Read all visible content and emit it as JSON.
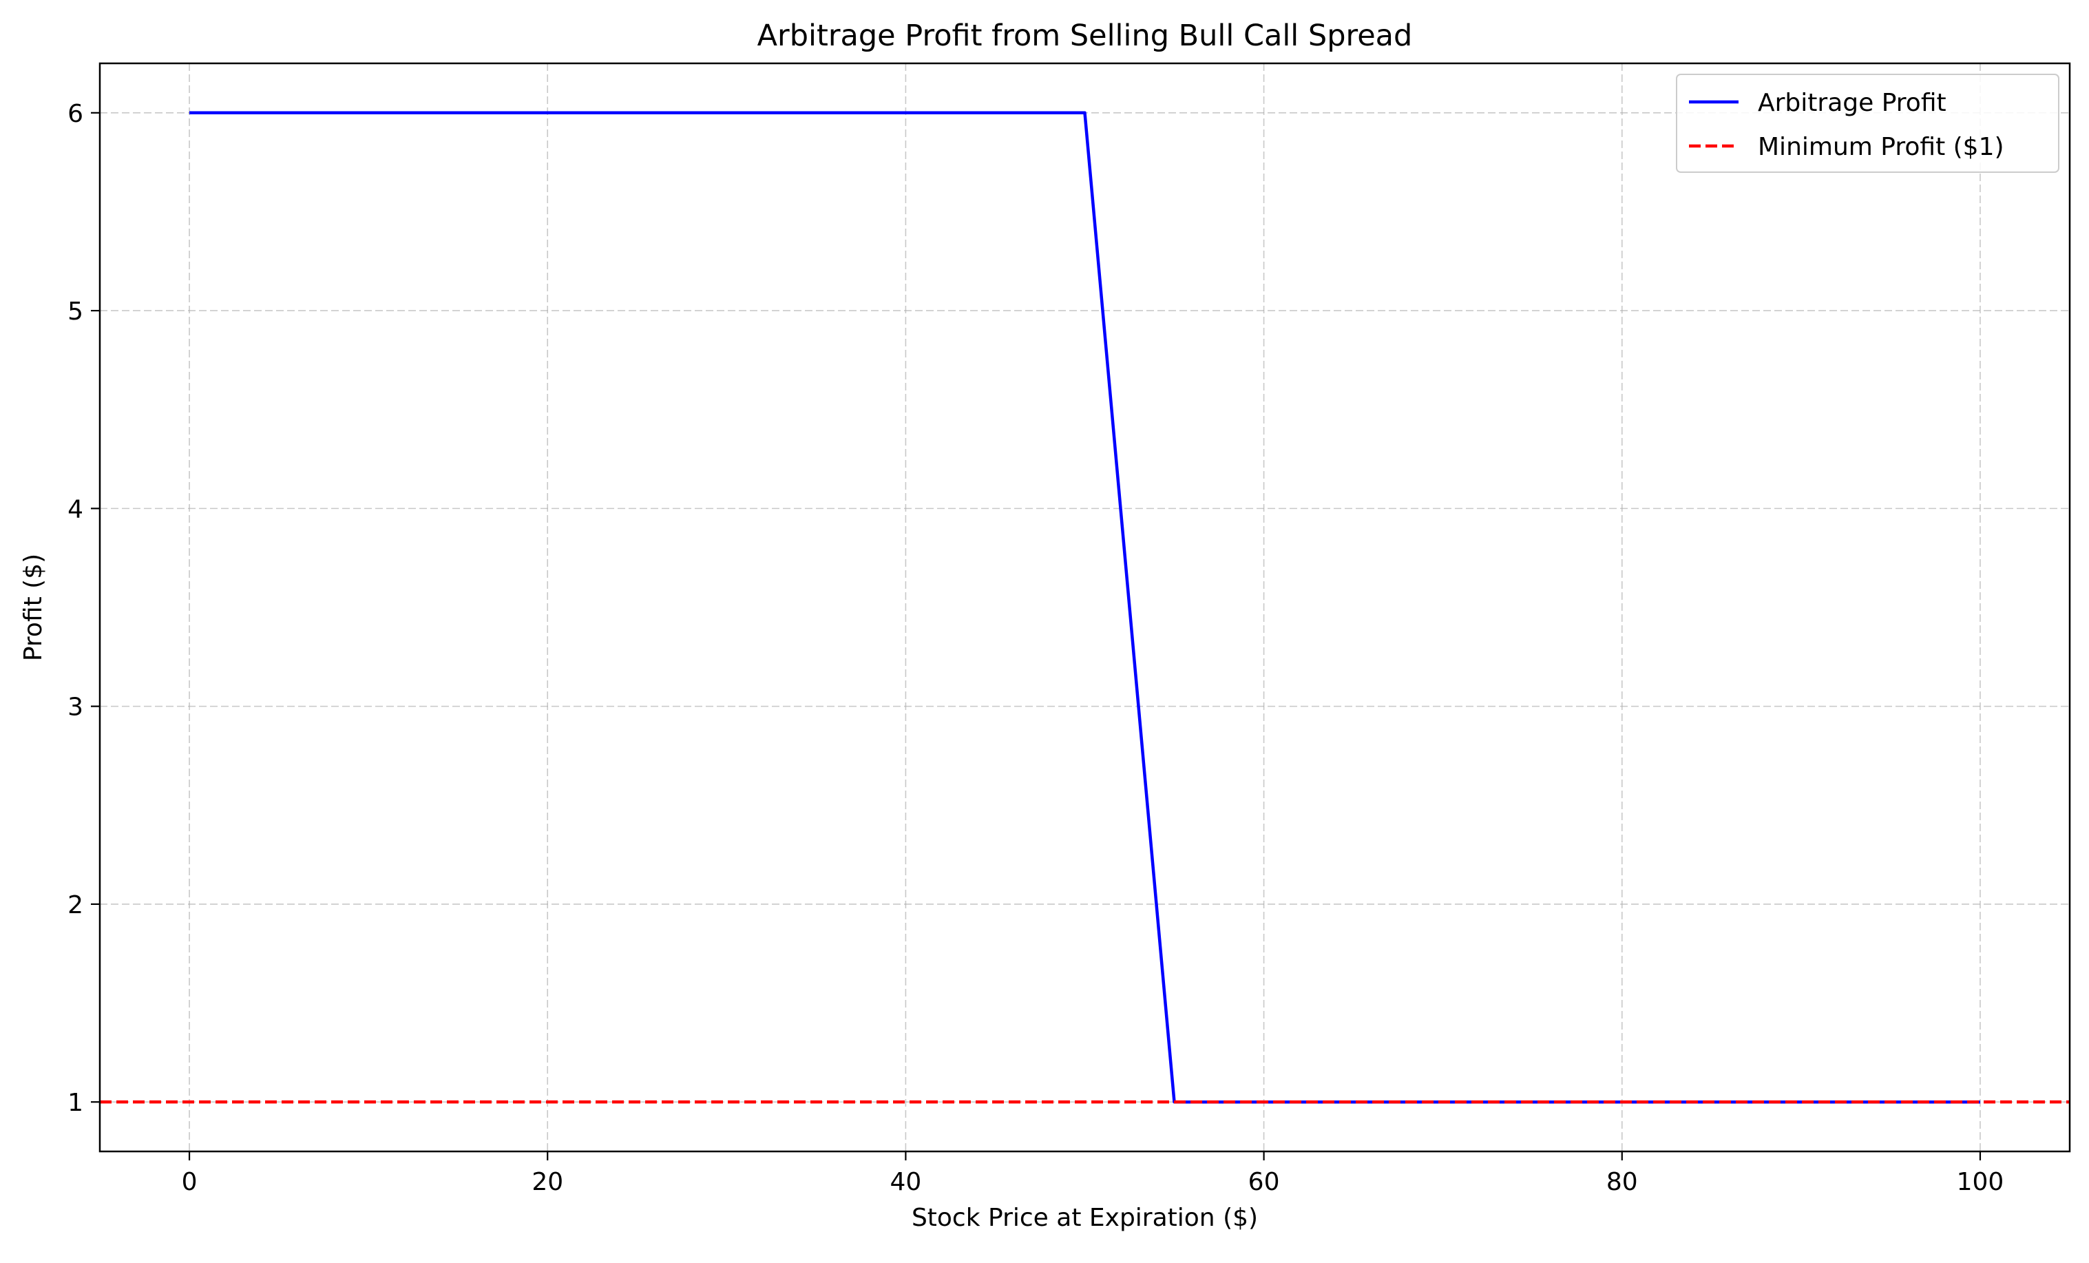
{
  "chart_data": {
    "type": "line",
    "title": "Arbitrage Profit from Selling Bull Call Spread",
    "xlabel": "Stock Price at Expiration ($)",
    "ylabel": "Profit ($)",
    "xlim": [
      -5,
      105
    ],
    "ylim": [
      0.75,
      6.25
    ],
    "xticks": [
      0,
      20,
      40,
      60,
      80,
      100
    ],
    "yticks": [
      1,
      2,
      3,
      4,
      5,
      6
    ],
    "xtick_labels": [
      "0",
      "20",
      "40",
      "60",
      "80",
      "100"
    ],
    "ytick_labels": [
      "1",
      "2",
      "3",
      "4",
      "5",
      "6"
    ],
    "grid": true,
    "legend_position": "top-right",
    "series": [
      {
        "name": "Arbitrage Profit",
        "color": "#0000ff",
        "style": "solid",
        "x": [
          0,
          50,
          55,
          100
        ],
        "y": [
          6,
          6,
          1,
          1
        ]
      },
      {
        "name": "Minimum Profit ($1)",
        "color": "#ff0000",
        "style": "dashed",
        "hline": 1
      }
    ]
  }
}
